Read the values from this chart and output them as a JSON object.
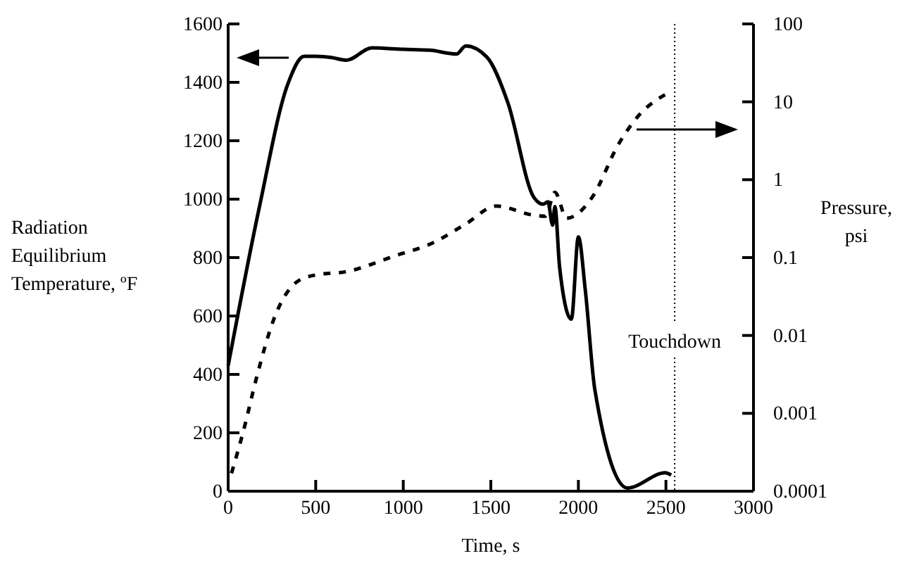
{
  "chart_data": {
    "type": "line",
    "xlabel": "Time, s",
    "ylabel": "Radiation Equilibrium Temperature, ºF",
    "y2label": "Pressure, psi",
    "log": "y2",
    "xlim": [
      0,
      3000
    ],
    "xticks": [
      0,
      500,
      1000,
      1500,
      2000,
      2500,
      3000
    ],
    "ylim": [
      0,
      1600
    ],
    "yticks": [
      0,
      200,
      400,
      600,
      800,
      1000,
      1200,
      1400,
      1600
    ],
    "y2lim": [
      0.0001,
      100
    ],
    "y2ticks": [
      0.0001,
      0.001,
      0.01,
      0.1,
      1,
      10,
      100
    ],
    "grid": false,
    "marker": "none",
    "ref_lines": [
      {
        "axis": "x",
        "value": 2550,
        "label": "Touchdown",
        "line_style": "dotted",
        "color": "#000000"
      }
    ],
    "series": [
      {
        "color": "#000000",
        "line_style": "solid",
        "axis": "y",
        "x": [
          0,
          179,
          340,
          434,
          503,
          590,
          675,
          822,
          1000,
          1150,
          1304,
          1357,
          1478,
          1598,
          1745,
          1799,
          1826,
          1853,
          1866,
          1893,
          1960,
          2000,
          2040,
          2094,
          2281,
          2496,
          2530
        ],
        "values": [
          430,
          975,
          1393,
          1489,
          1489,
          1485,
          1476,
          1518,
          1513,
          1510,
          1497,
          1525,
          1486,
          1329,
          1007,
          983,
          991,
          911,
          975,
          766,
          589,
          871,
          686,
          348,
          11,
          63,
          55
        ]
      },
      {
        "color": "#000000",
        "line_style": "dashed",
        "axis": "y2",
        "x": [
          19,
          86,
          166,
          260,
          394,
          503,
          675,
          956,
          1170,
          1357,
          1531,
          1745,
          1812,
          1866,
          1933,
          2080,
          2227,
          2335,
          2536
        ],
        "values": [
          0.00017,
          0.00058,
          0.0031,
          0.016,
          0.049,
          0.06,
          0.066,
          0.106,
          0.155,
          0.27,
          0.46,
          0.35,
          0.34,
          0.69,
          0.32,
          0.6,
          2.8,
          6.3,
          13.8
        ]
      }
    ]
  }
}
